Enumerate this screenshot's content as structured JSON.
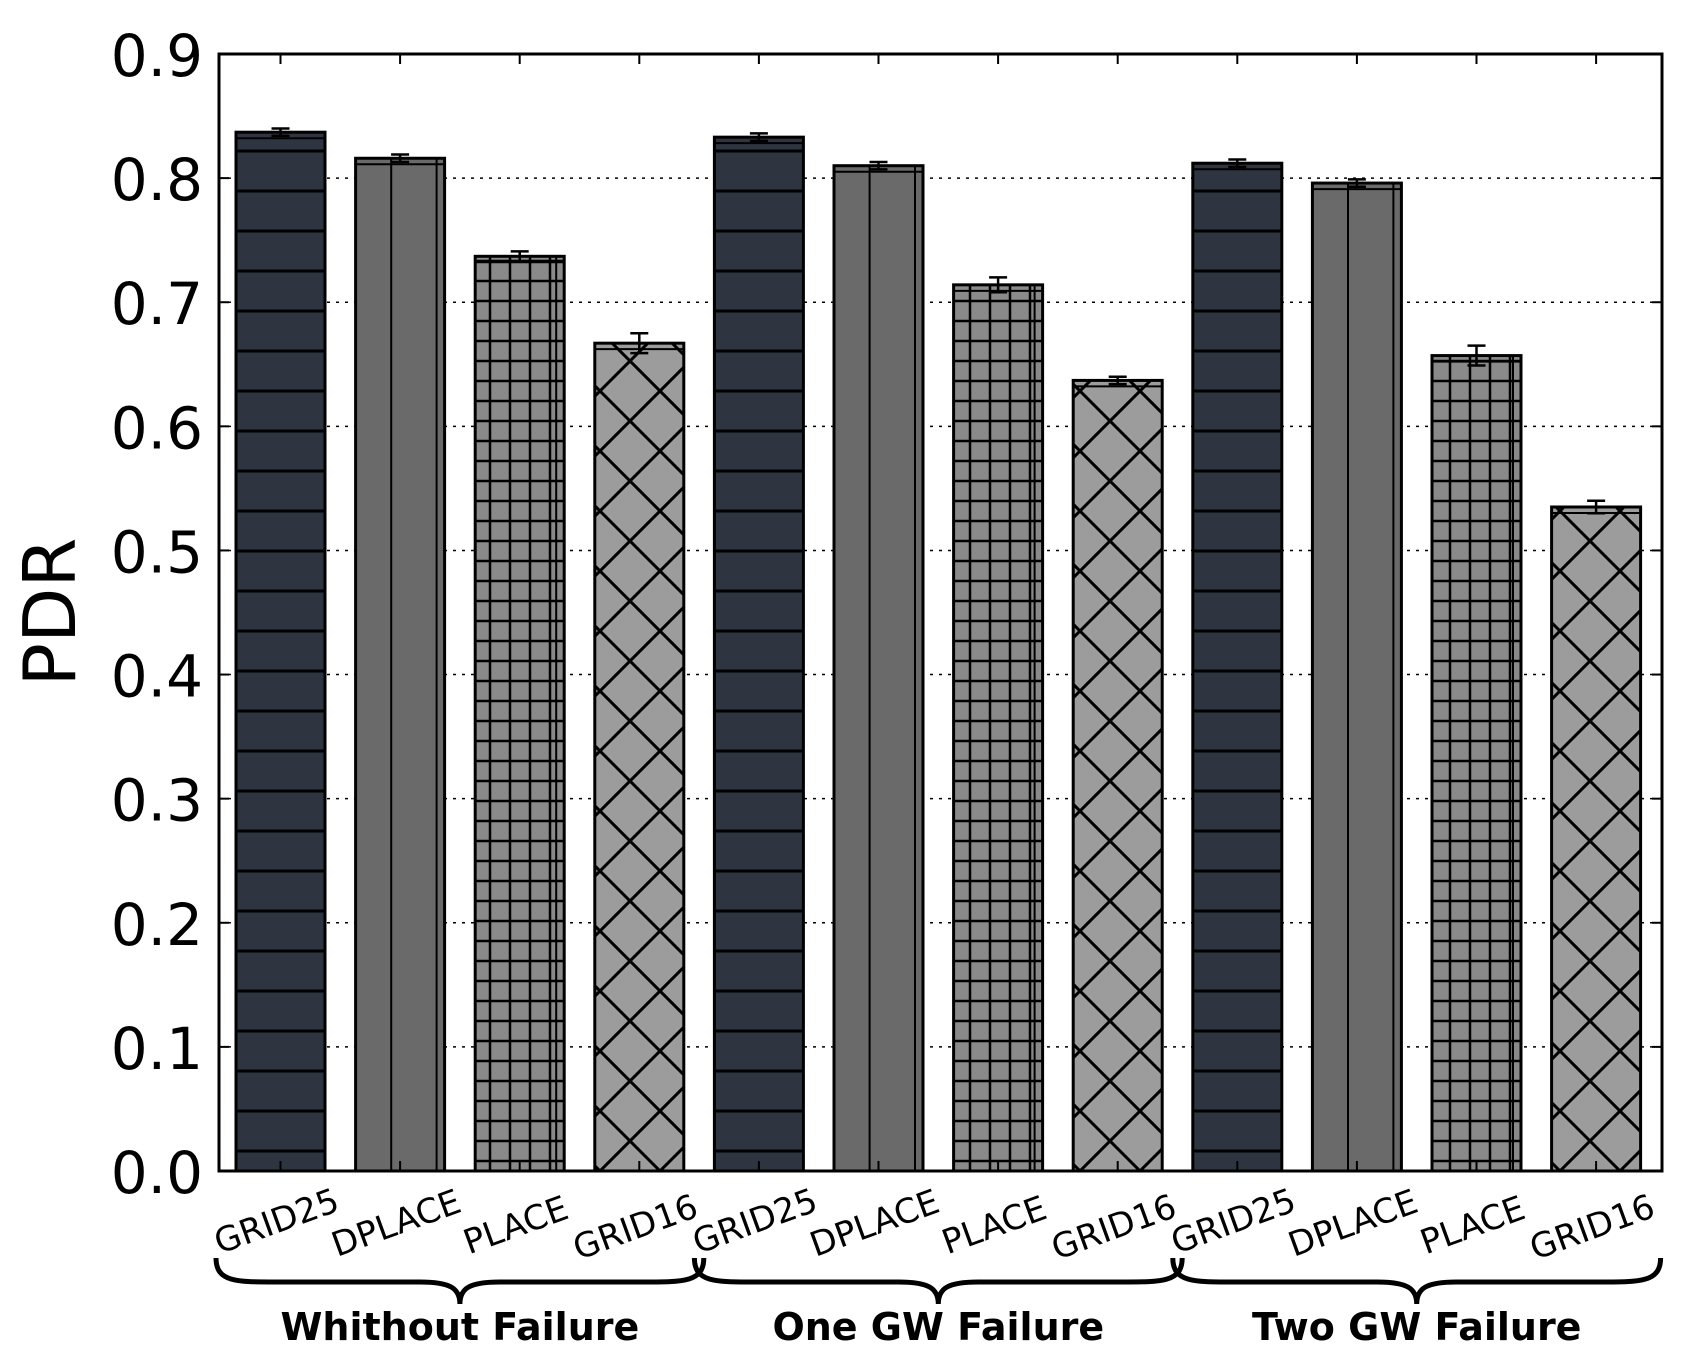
{
  "chart_data": {
    "type": "bar",
    "title": "",
    "xlabel": "",
    "ylabel": "PDR",
    "ylim": [
      0.0,
      0.9
    ],
    "yticks": [
      "0.0",
      "0.1",
      "0.2",
      "0.3",
      "0.4",
      "0.5",
      "0.6",
      "0.7",
      "0.8",
      "0.9"
    ],
    "grid": "horizontal-dotted",
    "groups": [
      {
        "label": "Whithout Failure",
        "bars": [
          {
            "name": "GRID25",
            "value": 0.837,
            "err": 0.003
          },
          {
            "name": "DPLACE",
            "value": 0.816,
            "err": 0.003
          },
          {
            "name": "PLACE",
            "value": 0.737,
            "err": 0.004
          },
          {
            "name": "GRID16",
            "value": 0.667,
            "err": 0.008
          }
        ]
      },
      {
        "label": "One GW Failure",
        "bars": [
          {
            "name": "GRID25",
            "value": 0.833,
            "err": 0.003
          },
          {
            "name": "DPLACE",
            "value": 0.81,
            "err": 0.003
          },
          {
            "name": "PLACE",
            "value": 0.714,
            "err": 0.006
          },
          {
            "name": "GRID16",
            "value": 0.637,
            "err": 0.003
          }
        ]
      },
      {
        "label": "Two GW Failure",
        "bars": [
          {
            "name": "GRID25",
            "value": 0.812,
            "err": 0.003
          },
          {
            "name": "DPLACE",
            "value": 0.796,
            "err": 0.003
          },
          {
            "name": "PLACE",
            "value": 0.657,
            "err": 0.008
          },
          {
            "name": "GRID16",
            "value": 0.535,
            "err": 0.005
          }
        ]
      }
    ],
    "styles": {
      "GRID25": {
        "fill": "#2e3440",
        "hatch": "horizontal"
      },
      "DPLACE": {
        "fill": "#6a6a6a",
        "hatch": "vertical"
      },
      "PLACE": {
        "fill": "#8a8a8a",
        "hatch": "grid"
      },
      "GRID16": {
        "fill": "#9c9c9c",
        "hatch": "cross"
      }
    }
  }
}
